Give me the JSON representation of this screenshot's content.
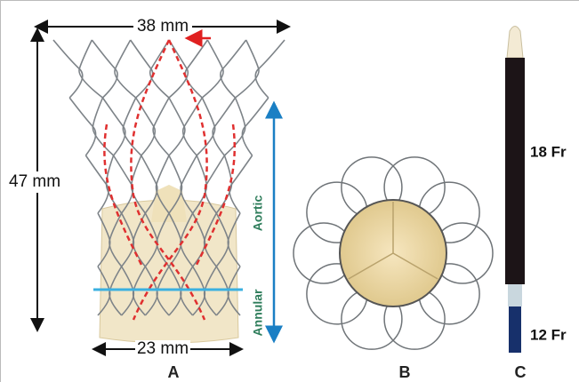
{
  "panels": [
    {
      "label": "A",
      "width_top": "38 mm",
      "height": "47 mm",
      "width_bottom": "23 mm",
      "region_upper": "Aortic",
      "region_lower": "Annular"
    },
    {
      "label": "B"
    },
    {
      "label": "C",
      "upper_size": "18 Fr",
      "lower_size": "12 Fr"
    }
  ]
}
